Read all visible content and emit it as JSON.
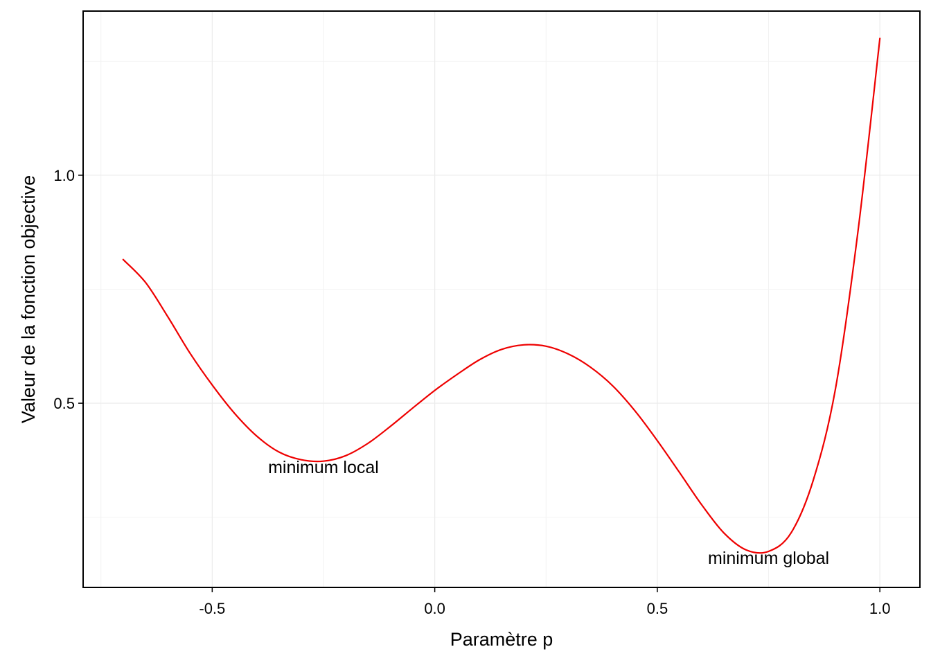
{
  "chart_data": {
    "type": "line",
    "xlabel": "Paramètre p",
    "ylabel": "Valeur de la fonction objective",
    "xlim": [
      -0.79,
      1.09
    ],
    "ylim": [
      0.096,
      1.36
    ],
    "x_ticks": [
      {
        "value": -0.5,
        "label": "-0.5"
      },
      {
        "value": 0.0,
        "label": "0.0"
      },
      {
        "value": 0.5,
        "label": "0.5"
      },
      {
        "value": 1.0,
        "label": "1.0"
      }
    ],
    "y_ticks": [
      {
        "value": 0.5,
        "label": "0.5"
      },
      {
        "value": 1.0,
        "label": "1.0"
      }
    ],
    "x_minor_grid": [
      -0.75,
      -0.25,
      0.25,
      0.75
    ],
    "y_minor_grid": [
      0.25,
      0.75,
      1.25
    ],
    "grid": true,
    "series": [
      {
        "color": "#ee0000",
        "x": [
          -0.7,
          -0.65,
          -0.6,
          -0.55,
          -0.5,
          -0.45,
          -0.4,
          -0.35,
          -0.3,
          -0.25,
          -0.2,
          -0.15,
          -0.1,
          -0.05,
          0.0,
          0.05,
          0.1,
          0.15,
          0.2,
          0.25,
          0.3,
          0.35,
          0.4,
          0.45,
          0.5,
          0.55,
          0.6,
          0.65,
          0.7,
          0.75,
          0.8,
          0.85,
          0.9,
          0.95,
          1.0
        ],
        "y": [
          0.815,
          0.765,
          0.69,
          0.61,
          0.54,
          0.478,
          0.428,
          0.393,
          0.376,
          0.373,
          0.385,
          0.412,
          0.449,
          0.489,
          0.528,
          0.563,
          0.595,
          0.618,
          0.628,
          0.625,
          0.608,
          0.579,
          0.538,
          0.483,
          0.418,
          0.348,
          0.277,
          0.215,
          0.178,
          0.175,
          0.215,
          0.33,
          0.53,
          0.87,
          1.3
        ]
      }
    ],
    "annotations": [
      {
        "text": "minimum local",
        "x": -0.25,
        "y": 0.347
      },
      {
        "text": "minimum global",
        "x": 0.75,
        "y": 0.148
      }
    ]
  }
}
